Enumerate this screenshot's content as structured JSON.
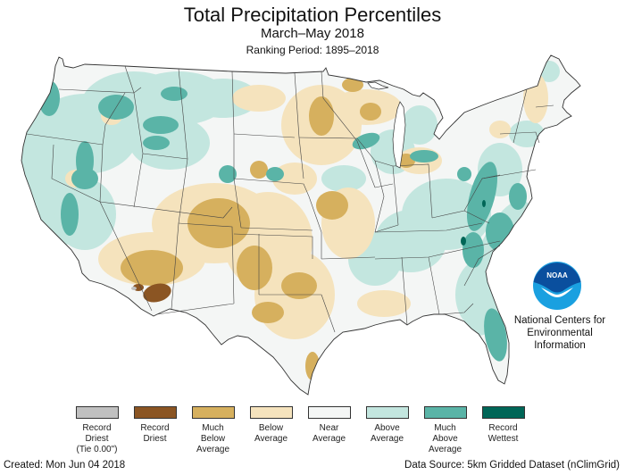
{
  "header": {
    "title": "Total Precipitation Percentiles",
    "subtitle": "March–May 2018",
    "ranking_period": "Ranking Period: 1895–2018"
  },
  "map": {
    "region": "Contiguous United States",
    "base_color": "#f4f6f5",
    "category_colors": {
      "record_driest_tie": "#c0c0c0",
      "record_driest": "#8b5523",
      "much_below": "#d6b05e",
      "below": "#f5e3bd",
      "near": "#f4f6f5",
      "above": "#c3e6df",
      "much_above": "#5ab4a7",
      "record_wettest": "#006657"
    }
  },
  "logo": {
    "icon": "noaa-logo",
    "text": "NOAA",
    "org_lines": [
      "National Centers for",
      "Environmental",
      "Information"
    ]
  },
  "legend": {
    "items": [
      {
        "lines": [
          "Record",
          "Driest",
          "(Tie 0.00\")"
        ],
        "color": "#c0c0c0"
      },
      {
        "lines": [
          "Record",
          "Driest"
        ],
        "color": "#8b5523"
      },
      {
        "lines": [
          "Much",
          "Below",
          "Average"
        ],
        "color": "#d6b05e"
      },
      {
        "lines": [
          "Below",
          "Average"
        ],
        "color": "#f5e3bd"
      },
      {
        "lines": [
          "Near",
          "Average"
        ],
        "color": "#f4f6f5"
      },
      {
        "lines": [
          "Above",
          "Average"
        ],
        "color": "#c3e6df"
      },
      {
        "lines": [
          "Much",
          "Above",
          "Average"
        ],
        "color": "#5ab4a7"
      },
      {
        "lines": [
          "Record",
          "Wettest"
        ],
        "color": "#006657"
      }
    ]
  },
  "footer": {
    "created": "Created: Mon Jun 04 2018",
    "source": "Data Source: 5km Gridded Dataset (nClimGrid)"
  }
}
